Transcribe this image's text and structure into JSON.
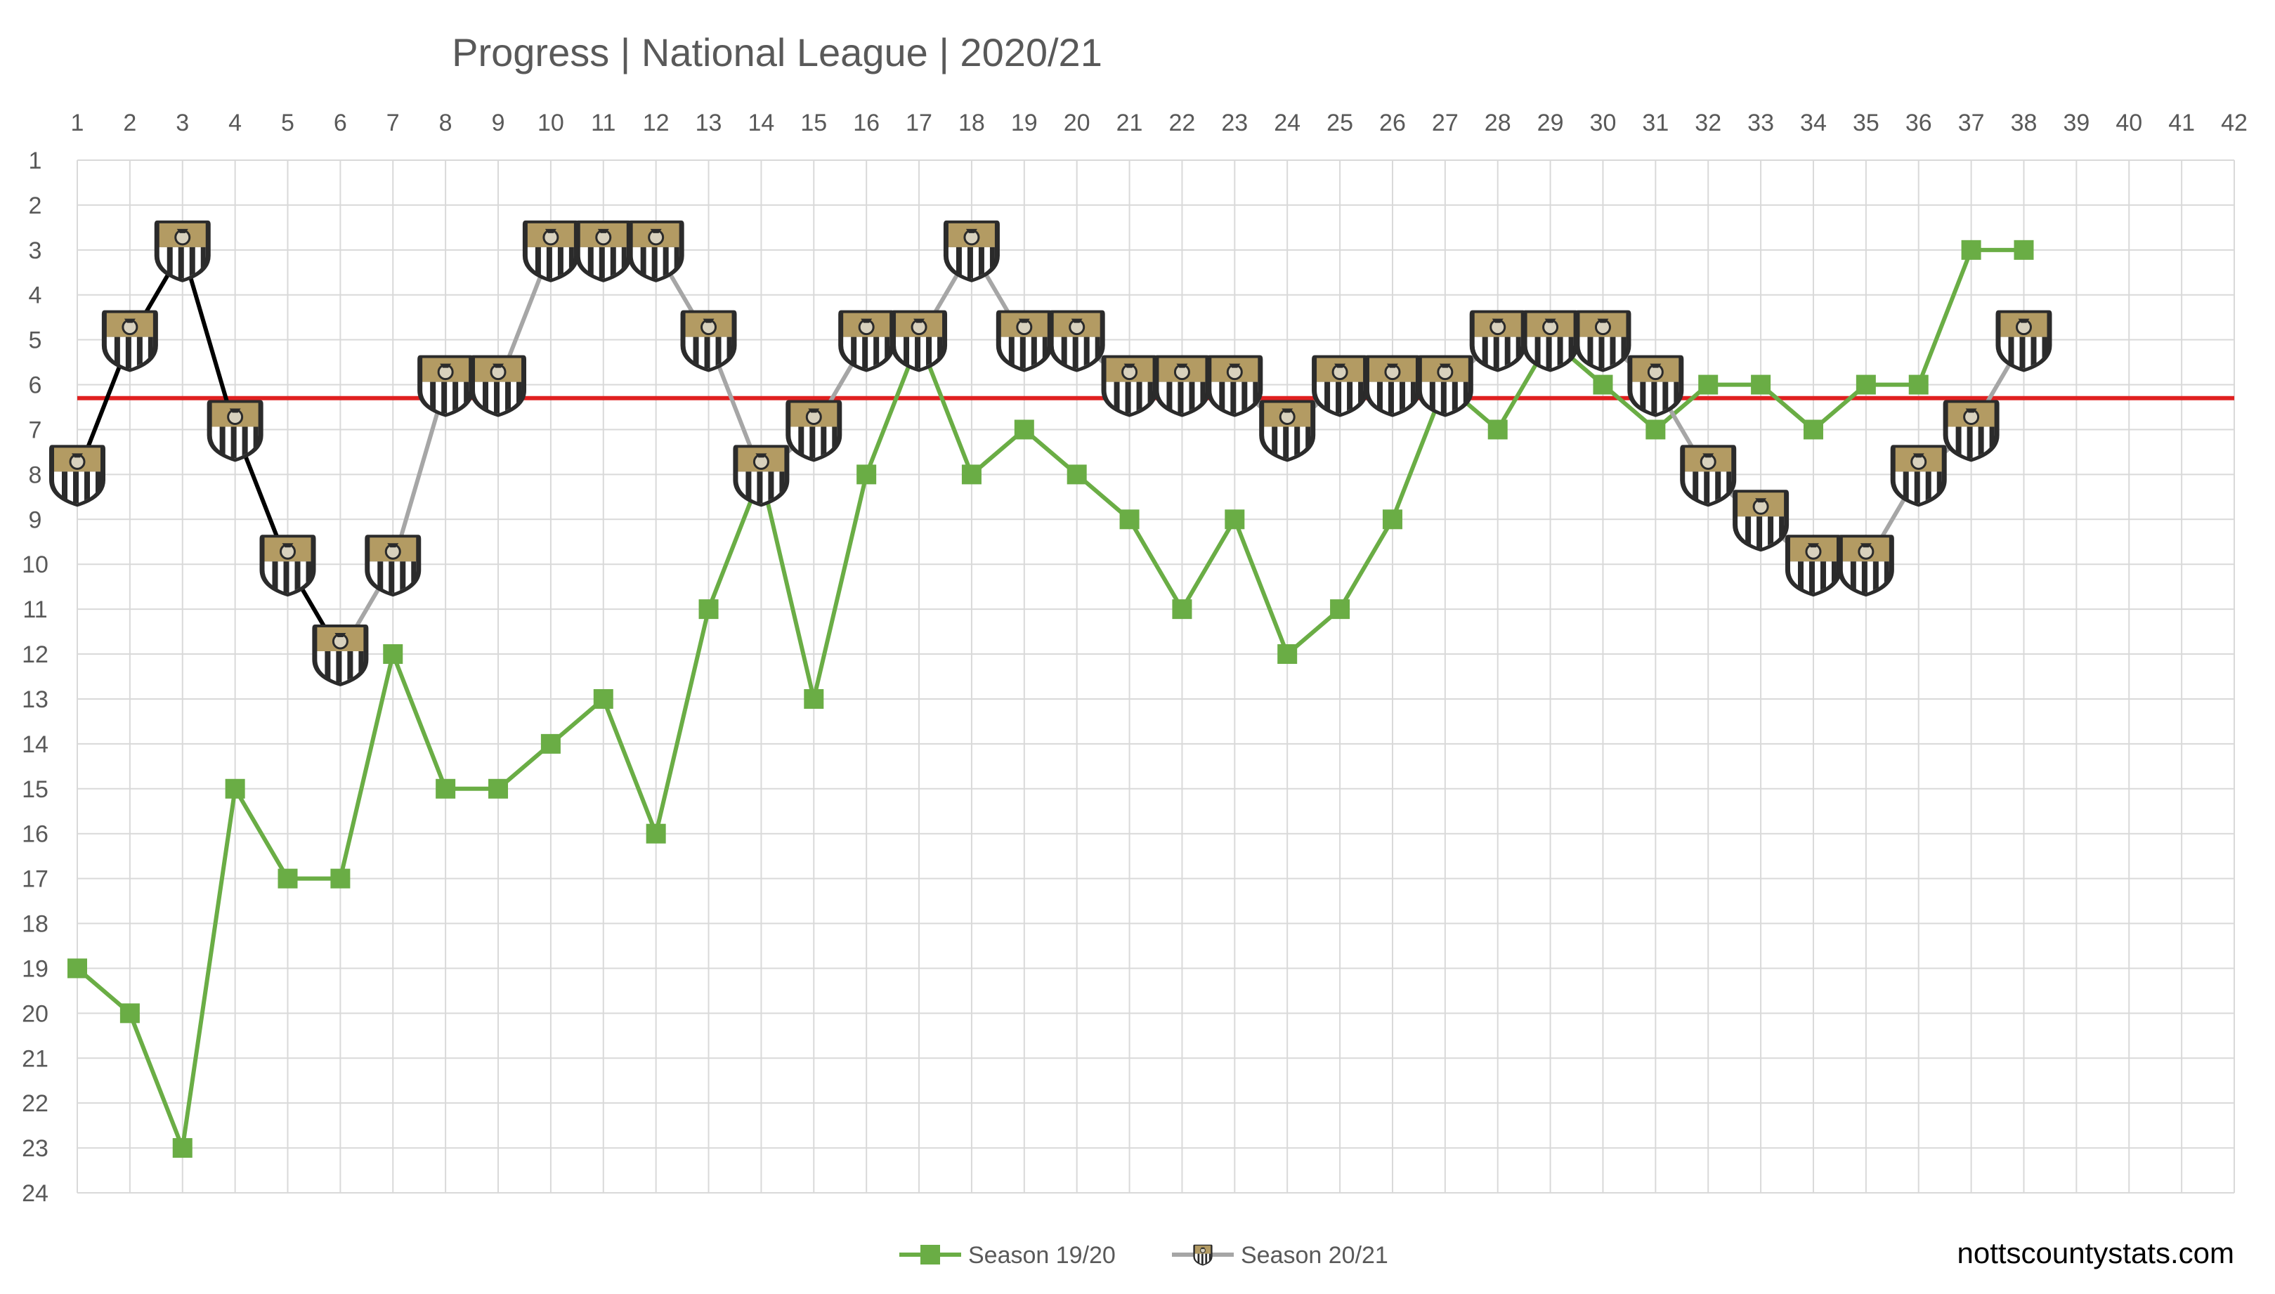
{
  "chart_data": {
    "type": "line",
    "title": "Progress | National League | 2020/21",
    "x_ticks": [
      1,
      2,
      3,
      4,
      5,
      6,
      7,
      8,
      9,
      10,
      11,
      12,
      13,
      14,
      15,
      16,
      17,
      18,
      19,
      20,
      21,
      22,
      23,
      24,
      25,
      26,
      27,
      28,
      29,
      30,
      31,
      32,
      33,
      34,
      35,
      36,
      37,
      38,
      39,
      40,
      41,
      42
    ],
    "y_ticks": [
      1,
      2,
      3,
      4,
      5,
      6,
      7,
      8,
      9,
      10,
      11,
      12,
      13,
      14,
      15,
      16,
      17,
      18,
      19,
      20,
      21,
      22,
      23,
      24
    ],
    "xlim": [
      1,
      42
    ],
    "ylim": [
      1,
      24
    ],
    "y_inverted": true,
    "x_axis_position": "top",
    "grid": true,
    "legend_position": "bottom",
    "reference_line": {
      "y": 6.3,
      "color": "#e02020"
    },
    "series": [
      {
        "name": "Season 19/20",
        "color": "#6aad45",
        "marker": "square",
        "x": [
          1,
          2,
          3,
          4,
          5,
          6,
          7,
          8,
          9,
          10,
          11,
          12,
          13,
          14,
          15,
          16,
          17,
          18,
          19,
          20,
          21,
          22,
          23,
          24,
          25,
          26,
          27,
          28,
          29,
          30,
          31,
          32,
          33,
          34,
          35,
          36,
          37,
          38
        ],
        "values": [
          19,
          20,
          23,
          15,
          17,
          17,
          12,
          15,
          15,
          14,
          13,
          16,
          11,
          8,
          13,
          8,
          5,
          8,
          7,
          8,
          9,
          11,
          9,
          12,
          11,
          9,
          6,
          7,
          5,
          6,
          7,
          6,
          6,
          7,
          6,
          6,
          3,
          3
        ]
      },
      {
        "name": "Season 20/21",
        "color": "#a6a6a6",
        "early_segment_color": "#000000",
        "marker": "crest-icon",
        "x": [
          1,
          2,
          3,
          4,
          5,
          6,
          7,
          8,
          9,
          10,
          11,
          12,
          13,
          14,
          15,
          16,
          17,
          18,
          19,
          20,
          21,
          22,
          23,
          24,
          25,
          26,
          27,
          28,
          29,
          30,
          31,
          32,
          33,
          34,
          35,
          36,
          37,
          38
        ],
        "values": [
          8,
          5,
          3,
          7,
          10,
          12,
          10,
          6,
          6,
          3,
          3,
          3,
          5,
          8,
          7,
          5,
          5,
          3,
          5,
          5,
          6,
          6,
          6,
          7,
          6,
          6,
          6,
          5,
          5,
          5,
          6,
          8,
          9,
          10,
          10,
          8,
          7,
          5
        ]
      }
    ]
  },
  "watermark": "nottscountystats.com",
  "colors": {
    "text": "#595959",
    "grid": "#d9d9d9",
    "crest_gold": "#b39b63",
    "crest_dark": "#2b2b2b"
  }
}
